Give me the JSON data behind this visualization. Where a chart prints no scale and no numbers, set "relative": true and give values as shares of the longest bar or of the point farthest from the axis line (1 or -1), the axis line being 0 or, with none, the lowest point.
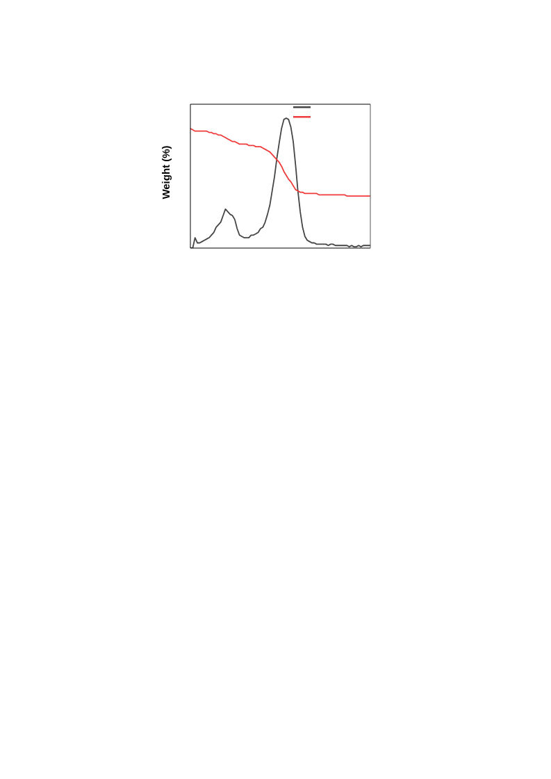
{
  "chart_data": {
    "type": "line",
    "ylabel": "Weight (%)",
    "relative": true,
    "categories": [
      null,
      null,
      null,
      null,
      null,
      null,
      null,
      null,
      null,
      null,
      null,
      null,
      null,
      null,
      null,
      null,
      null,
      null,
      null,
      null,
      null,
      null,
      null,
      null,
      null,
      null,
      null,
      null,
      null,
      null,
      null,
      null,
      null,
      null,
      null,
      null,
      null,
      null,
      null,
      null,
      null,
      null,
      null,
      null,
      null,
      null,
      null,
      null,
      null,
      null,
      null,
      null,
      null,
      null,
      null,
      null,
      null,
      null,
      null,
      null,
      null,
      null,
      null,
      null,
      null,
      null,
      null,
      null,
      null,
      null,
      null,
      null,
      null,
      null,
      null,
      null,
      null,
      null
    ],
    "series": [
      {
        "color": "#454545",
        "values": [
          0,
          0,
          0.08,
          0.04,
          0.04,
          0.05,
          0.06,
          0.07,
          0.08,
          0.1,
          0.12,
          0.16,
          0.18,
          0.2,
          0.25,
          0.3,
          0.28,
          0.26,
          0.25,
          0.22,
          0.15,
          0.1,
          0.09,
          0.08,
          0.08,
          0.08,
          0.1,
          0.1,
          0.11,
          0.12,
          0.15,
          0.16,
          0.2,
          0.26,
          0.33,
          0.44,
          0.55,
          0.69,
          0.81,
          0.92,
          0.99,
          1.0,
          0.99,
          0.93,
          0.82,
          0.64,
          0.44,
          0.28,
          0.16,
          0.09,
          0.06,
          0.05,
          0.04,
          0.04,
          0.03,
          0.03,
          0.03,
          0.03,
          0.03,
          0.02,
          0.03,
          0.03,
          0.02,
          0.02,
          0.02,
          0.02,
          0.02,
          0.02,
          0.01,
          0.02,
          0.01,
          0.01,
          0.02,
          0.01,
          0.02,
          0.02,
          0.02,
          0.02
        ]
      },
      {
        "color": "#ef3b3b",
        "values": [
          0.92,
          0.91,
          0.9,
          0.9,
          0.9,
          0.9,
          0.9,
          0.9,
          0.89,
          0.89,
          0.88,
          0.88,
          0.87,
          0.87,
          0.86,
          0.85,
          0.84,
          0.83,
          0.82,
          0.82,
          0.81,
          0.8,
          0.8,
          0.8,
          0.8,
          0.79,
          0.79,
          0.79,
          0.78,
          0.78,
          0.78,
          0.77,
          0.76,
          0.75,
          0.74,
          0.72,
          0.7,
          0.68,
          0.66,
          0.63,
          0.59,
          0.56,
          0.53,
          0.51,
          0.48,
          0.45,
          0.44,
          0.43,
          0.43,
          0.42,
          0.42,
          0.42,
          0.42,
          0.42,
          0.42,
          0.41,
          0.41,
          0.41,
          0.41,
          0.41,
          0.41,
          0.41,
          0.41,
          0.41,
          0.41,
          0.41,
          0.41,
          0.4,
          0.4,
          0.4,
          0.4,
          0.4,
          0.4,
          0.4,
          0.4,
          0.4,
          0.4,
          0.4
        ]
      }
    ]
  }
}
